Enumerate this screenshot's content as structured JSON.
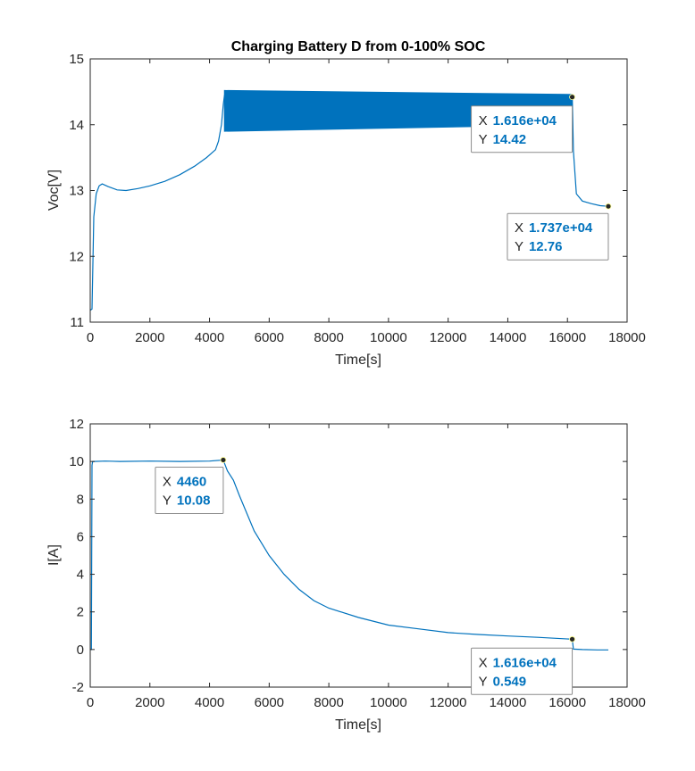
{
  "chart_data": [
    {
      "type": "line",
      "title": "Charging Battery D from 0-100% SOC",
      "xlabel": "Time[s]",
      "ylabel": "Voc[V]",
      "xlim": [
        0,
        18000
      ],
      "ylim": [
        11,
        15
      ],
      "xticks": [
        "0",
        "2000",
        "4000",
        "6000",
        "8000",
        "10000",
        "12000",
        "14000",
        "16000",
        "18000"
      ],
      "yticks": [
        "11",
        "12",
        "13",
        "14",
        "15"
      ],
      "grid": false,
      "color": "#0072BD",
      "series": [
        {
          "x": [
            0,
            60,
            120,
            200,
            300,
            400,
            600,
            900,
            1200,
            1600,
            2000,
            2500,
            3000,
            3500,
            3900,
            4200,
            4300,
            4400,
            4460,
            4500
          ],
          "y": [
            11.18,
            11.2,
            12.6,
            12.95,
            13.07,
            13.1,
            13.06,
            13.01,
            13.0,
            13.03,
            13.07,
            13.14,
            13.24,
            13.37,
            13.5,
            13.62,
            13.75,
            14.0,
            14.3,
            14.45
          ],
          "band": {
            "x_start": 4500,
            "x_end": 16160,
            "upper": [
              14.52,
              14.46
            ],
            "lower": [
              13.9,
              14.0
            ]
          },
          "tail": {
            "x": [
              16160,
              16200,
              16300,
              16500,
              16800,
              17100,
              17370
            ],
            "y": [
              14.42,
              13.6,
              12.95,
              12.84,
              12.8,
              12.77,
              12.76
            ]
          }
        }
      ],
      "datatips": [
        {
          "x_label": "X",
          "x_value": "1.616e+04",
          "y_label": "Y",
          "y_value": "14.42",
          "x": 16160,
          "y": 14.42
        },
        {
          "x_label": "X",
          "x_value": "1.737e+04",
          "y_label": "Y",
          "y_value": "12.76",
          "x": 17370,
          "y": 12.76
        }
      ]
    },
    {
      "type": "line",
      "title": "",
      "xlabel": "Time[s]",
      "ylabel": "I[A]",
      "xlim": [
        0,
        18000
      ],
      "ylim": [
        -2,
        12
      ],
      "xticks": [
        "0",
        "2000",
        "4000",
        "6000",
        "8000",
        "10000",
        "12000",
        "14000",
        "16000",
        "18000"
      ],
      "yticks": [
        "-2",
        "0",
        "2",
        "4",
        "6",
        "8",
        "10",
        "12"
      ],
      "grid": false,
      "color": "#0072BD",
      "series": [
        {
          "x": [
            0,
            40,
            60,
            80,
            120,
            500,
            1000,
            2000,
            3000,
            4000,
            4460,
            4600,
            4800,
            5000,
            5500,
            6000,
            6500,
            7000,
            7500,
            8000,
            9000,
            10000,
            11000,
            12000,
            13000,
            14000,
            15000,
            16160,
            16200,
            16500,
            17000,
            17370
          ],
          "y": [
            0,
            0,
            9.8,
            10.0,
            10.0,
            10.02,
            10.0,
            10.02,
            10.0,
            10.02,
            10.08,
            9.5,
            9.0,
            8.2,
            6.3,
            5.0,
            4.0,
            3.2,
            2.6,
            2.2,
            1.7,
            1.3,
            1.1,
            0.9,
            0.8,
            0.72,
            0.65,
            0.549,
            0.02,
            0.0,
            -0.02,
            -0.02
          ]
        }
      ],
      "datatips": [
        {
          "x_label": "X",
          "x_value": "4460",
          "y_label": "Y",
          "y_value": "10.08",
          "x": 4460,
          "y": 10.08
        },
        {
          "x_label": "X",
          "x_value": "1.616e+04",
          "y_label": "Y",
          "y_value": "0.549",
          "x": 16160,
          "y": 0.549
        }
      ]
    }
  ]
}
